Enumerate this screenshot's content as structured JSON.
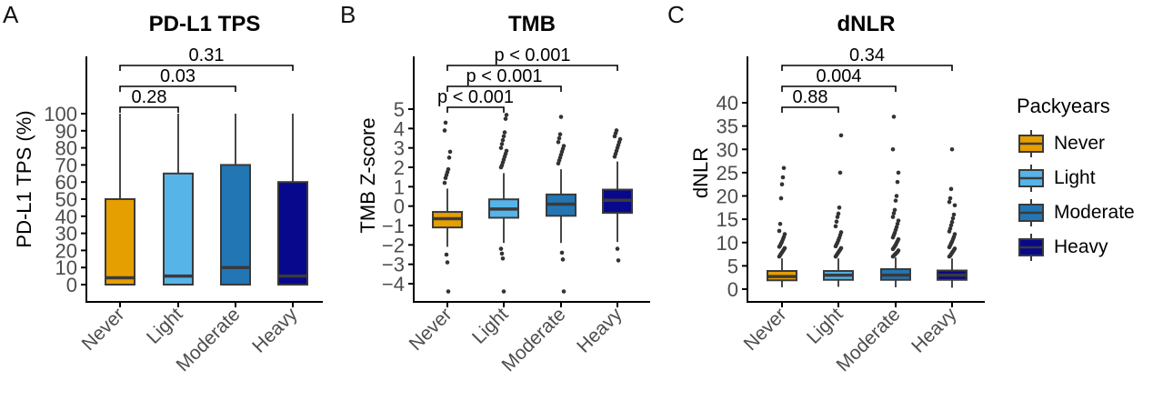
{
  "chart_data": [
    {
      "type": "box",
      "label": "A",
      "title": "PD-L1 TPS",
      "ylabel": "PD-L1 TPS (%)",
      "categories": [
        "Never",
        "Light",
        "Moderate",
        "Heavy"
      ],
      "yticks": [
        0,
        10,
        20,
        30,
        40,
        50,
        60,
        70,
        80,
        90,
        100
      ],
      "ylim": [
        0,
        100
      ],
      "boxes": [
        {
          "group": "Never",
          "q1": 0,
          "median": 4,
          "q3": 50,
          "whisker_low": 0,
          "whisker_high": 100,
          "outliers": []
        },
        {
          "group": "Light",
          "q1": 0,
          "median": 5,
          "q3": 65,
          "whisker_low": 0,
          "whisker_high": 100,
          "outliers": []
        },
        {
          "group": "Moderate",
          "q1": 0,
          "median": 10,
          "q3": 70,
          "whisker_low": 0,
          "whisker_high": 100,
          "outliers": []
        },
        {
          "group": "Heavy",
          "q1": 0,
          "median": 5,
          "q3": 60,
          "whisker_low": 0,
          "whisker_high": 100,
          "outliers": []
        }
      ],
      "comparisons": [
        {
          "label": "0.28",
          "a": "Never",
          "b": "Light"
        },
        {
          "label": "0.03",
          "a": "Never",
          "b": "Moderate"
        },
        {
          "label": "0.31",
          "a": "Never",
          "b": "Heavy"
        }
      ]
    },
    {
      "type": "box",
      "label": "B",
      "title": "TMB",
      "ylabel": "TMB Z-score",
      "categories": [
        "Never",
        "Light",
        "Moderate",
        "Heavy"
      ],
      "yticks": [
        -4,
        -3,
        -2,
        -1,
        0,
        1,
        2,
        3,
        4,
        5
      ],
      "ylim": [
        -4,
        5
      ],
      "boxes": [
        {
          "group": "Never",
          "q1": -1.1,
          "median": -0.65,
          "q3": -0.3,
          "whisker_low": -2.1,
          "whisker_high": 0.9,
          "outliers": [
            1.2,
            1.45,
            1.6,
            1.75,
            1.9,
            2.5,
            2.8,
            3.9,
            4.3,
            -2.5,
            -2.9,
            -4.4
          ]
        },
        {
          "group": "Light",
          "q1": -0.6,
          "median": -0.15,
          "q3": 0.35,
          "whisker_low": -1.9,
          "whisker_high": 1.7,
          "outliers": [
            2.0,
            2.1,
            2.25,
            2.4,
            2.55,
            2.7,
            2.85,
            3.0,
            3.2,
            3.4,
            3.6,
            3.8,
            4.5,
            4.7,
            -2.2,
            -2.45,
            -2.7,
            -4.4
          ]
        },
        {
          "group": "Moderate",
          "q1": -0.5,
          "median": 0.1,
          "q3": 0.6,
          "whisker_low": -1.9,
          "whisker_high": 1.9,
          "outliers": [
            2.2,
            2.35,
            2.5,
            2.65,
            2.8,
            2.95,
            3.1,
            3.3,
            3.5,
            3.7,
            4.6,
            -2.4,
            -2.75,
            -4.4
          ]
        },
        {
          "group": "Heavy",
          "q1": -0.35,
          "median": 0.3,
          "q3": 0.85,
          "whisker_low": -1.85,
          "whisker_high": 2.3,
          "outliers": [
            2.55,
            2.7,
            2.85,
            3.0,
            3.15,
            3.3,
            3.45,
            3.6,
            3.75,
            3.9,
            -2.2,
            -2.8
          ]
        }
      ],
      "comparisons": [
        {
          "label": "p < 0.001",
          "a": "Never",
          "b": "Light"
        },
        {
          "label": "p < 0.001",
          "a": "Never",
          "b": "Moderate"
        },
        {
          "label": "p < 0.001",
          "a": "Never",
          "b": "Heavy"
        }
      ]
    },
    {
      "type": "box",
      "label": "C",
      "title": "dNLR",
      "ylabel": "dNLR",
      "categories": [
        "Never",
        "Light",
        "Moderate",
        "Heavy"
      ],
      "yticks": [
        0,
        5,
        10,
        15,
        20,
        25,
        30,
        35,
        40
      ],
      "ylim": [
        0,
        40
      ],
      "boxes": [
        {
          "group": "Never",
          "q1": 1.9,
          "median": 2.7,
          "q3": 3.9,
          "whisker_low": 0.4,
          "whisker_high": 6.6,
          "outliers": [
            7,
            7.3,
            7.6,
            7.9,
            8.2,
            8.5,
            8.8,
            9.1,
            9.4,
            9.8,
            10.2,
            10.7,
            11.2,
            11.8,
            12.5,
            14,
            19.5,
            22.5,
            24,
            26
          ]
        },
        {
          "group": "Light",
          "q1": 2.0,
          "median": 3.0,
          "q3": 3.9,
          "whisker_low": 0.5,
          "whisker_high": 6.6,
          "outliers": [
            7,
            7.3,
            7.6,
            7.9,
            8.2,
            8.5,
            8.8,
            9.2,
            9.6,
            10,
            10.5,
            11,
            11.6,
            12.2,
            13.5,
            14.5,
            15.5,
            16.2,
            17.5,
            25,
            33
          ]
        },
        {
          "group": "Moderate",
          "q1": 2.0,
          "median": 3.0,
          "q3": 4.3,
          "whisker_low": 0.4,
          "whisker_high": 6.8,
          "outliers": [
            7,
            7.2,
            7.4,
            7.6,
            7.8,
            8,
            8.3,
            8.6,
            8.9,
            9.2,
            9.5,
            9.9,
            10.3,
            10.7,
            11.1,
            11.6,
            12.1,
            12.7,
            13.3,
            14,
            14.7,
            15.5,
            16.3,
            17,
            19,
            20,
            23,
            25,
            30,
            37
          ]
        },
        {
          "group": "Heavy",
          "q1": 2.0,
          "median": 3.0,
          "q3": 4.0,
          "whisker_low": 0.3,
          "whisker_high": 6.6,
          "outliers": [
            7,
            7.2,
            7.5,
            7.8,
            8.1,
            8.4,
            8.7,
            9,
            9.4,
            9.8,
            10.2,
            10.7,
            11.2,
            11.8,
            12.4,
            13,
            13.7,
            14.4,
            15.2,
            16,
            18,
            18.7,
            19.5,
            21.5,
            30
          ]
        }
      ],
      "comparisons": [
        {
          "label": "0.88",
          "a": "Never",
          "b": "Light"
        },
        {
          "label": "0.004",
          "a": "Never",
          "b": "Moderate"
        },
        {
          "label": "0.34",
          "a": "Never",
          "b": "Heavy"
        }
      ]
    }
  ],
  "legend": {
    "title": "Packyears",
    "items": [
      {
        "label": "Never",
        "color": "#E69F00"
      },
      {
        "label": "Light",
        "color": "#56B4E9"
      },
      {
        "label": "Moderate",
        "color": "#2276B4"
      },
      {
        "label": "Heavy",
        "color": "#08088C"
      }
    ]
  },
  "colors": {
    "box_outline": "#3a3a3a",
    "whisker": "#333333",
    "outlier": "#333333",
    "axis": "#000000",
    "tick_label": "#4d4d4d",
    "annotation": "#000000"
  }
}
